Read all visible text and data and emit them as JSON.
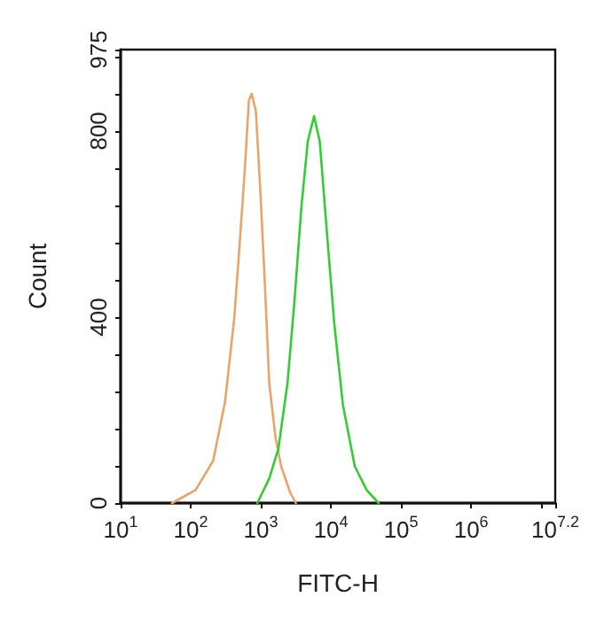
{
  "chart_data": {
    "type": "line",
    "xlabel": "FITC-H",
    "ylabel": "Count",
    "log": "x",
    "grid": false,
    "marker": "none",
    "line_style": "solid",
    "xlim": [
      10,
      15848932
    ],
    "ylim": [
      0,
      975
    ],
    "xticks": [
      {
        "value": 10,
        "label": "10$^{1}$"
      },
      {
        "value": 100,
        "label": "10$^{2}$"
      },
      {
        "value": 1000,
        "label": "10$^{3}$"
      },
      {
        "value": 10000,
        "label": "10$^{4}$"
      },
      {
        "value": 100000,
        "label": "10$^{5}$"
      },
      {
        "value": 1000000,
        "label": "10$^{6}$"
      },
      {
        "value": 10000000,
        "label": null
      },
      {
        "value": 15848932,
        "label": "10$^{7.2}$"
      }
    ],
    "yticks": [
      0,
      {
        "value": 80,
        "label": null
      },
      {
        "value": 160,
        "label": null
      },
      {
        "value": 240,
        "label": null
      },
      {
        "value": 320,
        "label": null
      },
      400,
      {
        "value": 480,
        "label": null
      },
      {
        "value": 560,
        "label": null
      },
      {
        "value": 640,
        "label": null
      },
      {
        "value": 720,
        "label": null
      },
      800,
      {
        "value": 880,
        "label": null
      },
      {
        "value": 960,
        "label": null
      },
      975
    ],
    "series": [
      {
        "color": "#e8a46c",
        "x": [
          54,
          117,
          209,
          309,
          417,
          501,
          589,
          676,
          741,
          851,
          1000,
          1150,
          1320,
          1620,
          1950,
          2630,
          3160
        ],
        "values": [
          0,
          28,
          91,
          218,
          396,
          561,
          714,
          866,
          880,
          842,
          652,
          461,
          257,
          142,
          79,
          22,
          0
        ]
      },
      {
        "color": "#33cc33",
        "x": [
          890,
          1320,
          1780,
          2400,
          3020,
          3800,
          4680,
          5750,
          6920,
          8710,
          11200,
          14800,
          21900,
          32400,
          47900
        ],
        "values": [
          0,
          53,
          117,
          257,
          435,
          638,
          778,
          832,
          778,
          587,
          384,
          212,
          79,
          28,
          0
        ]
      }
    ]
  }
}
